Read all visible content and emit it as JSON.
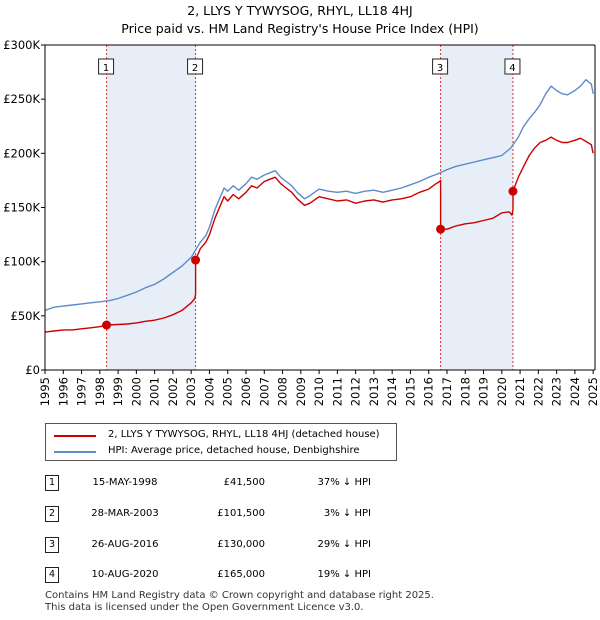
{
  "title": {
    "line1": "2, LLYS Y TYWYSOG, RHYL, LL18 4HJ",
    "line2": "Price paid vs. HM Land Registry's House Price Index (HPI)"
  },
  "colors": {
    "property_line": "#cc0000",
    "hpi_line": "#5b8cc9",
    "shade": "#e8eef8",
    "marker_border": "#cc0000",
    "vline": "#cc0000"
  },
  "legend": {
    "property_label": "2, LLYS Y TYWYSOG, RHYL, LL18 4HJ (detached house)",
    "hpi_label": "HPI: Average price, detached house, Denbighshire"
  },
  "transactions": [
    {
      "num": "1",
      "date": "15-MAY-1998",
      "price": "£41,500",
      "hpi": "37% ↓ HPI"
    },
    {
      "num": "2",
      "date": "28-MAR-2003",
      "price": "£101,500",
      "hpi": "3% ↓ HPI"
    },
    {
      "num": "3",
      "date": "26-AUG-2016",
      "price": "£130,000",
      "hpi": "29% ↓ HPI"
    },
    {
      "num": "4",
      "date": "10-AUG-2020",
      "price": "£165,000",
      "hpi": "19% ↓ HPI"
    }
  ],
  "footer": {
    "line1": "Contains HM Land Registry data © Crown copyright and database right 2025.",
    "line2": "This data is licensed under the Open Government Licence v3.0."
  },
  "chart_data": {
    "type": "line",
    "title": "2, LLYS Y TYWYSOG, RHYL, LL18 4HJ — Price paid vs. HM Land Registry's House Price Index (HPI)",
    "xlabel": "",
    "ylabel": "",
    "xlim": [
      1995,
      2025.1
    ],
    "ylim": [
      0,
      300000
    ],
    "y_ticks": [
      0,
      50000,
      100000,
      150000,
      200000,
      250000,
      300000
    ],
    "y_tick_labels": [
      "£0",
      "£50K",
      "£100K",
      "£150K",
      "£200K",
      "£250K",
      "£300K"
    ],
    "x_ticks": [
      1995,
      1996,
      1997,
      1998,
      1999,
      2000,
      2001,
      2002,
      2003,
      2004,
      2005,
      2006,
      2007,
      2008,
      2009,
      2010,
      2011,
      2012,
      2013,
      2014,
      2015,
      2016,
      2017,
      2018,
      2019,
      2020,
      2021,
      2022,
      2023,
      2024,
      2025
    ],
    "x_tick_labels": [
      "1995",
      "1996",
      "1997",
      "1998",
      "1999",
      "2000",
      "2001",
      "2002",
      "2003",
      "2004",
      "2005",
      "2006",
      "2007",
      "2008",
      "2009",
      "2010",
      "2011",
      "2012",
      "2013",
      "2014",
      "2015",
      "2016",
      "2017",
      "2018",
      "2019",
      "2020",
      "2021",
      "2022",
      "2023",
      "2024",
      "2025"
    ],
    "grid": false,
    "legend_position": "below",
    "sale_events": [
      {
        "num": "1",
        "x": 1998.37,
        "price": 41500
      },
      {
        "num": "2",
        "x": 2003.24,
        "price": 101500
      },
      {
        "num": "3",
        "x": 2016.65,
        "price": 130000
      },
      {
        "num": "4",
        "x": 2020.61,
        "price": 165000
      }
    ],
    "shaded_ranges": [
      [
        1998.37,
        2003.24
      ],
      [
        2016.65,
        2020.61
      ]
    ],
    "series": [
      {
        "name": "2, LLYS Y TYWYSOG, RHYL, LL18 4HJ (detached house)",
        "color": "#cc0000",
        "x": [
          1995.0,
          1995.5,
          1996.0,
          1996.5,
          1997.0,
          1997.5,
          1998.0,
          1998.37,
          1998.37,
          1999.0,
          1999.5,
          2000.0,
          2000.5,
          2001.0,
          2001.5,
          2002.0,
          2002.5,
          2003.0,
          2003.2,
          2003.24,
          2003.24,
          2003.5,
          2003.8,
          2004.0,
          2004.3,
          2004.6,
          2004.8,
          2005.0,
          2005.3,
          2005.6,
          2006.0,
          2006.3,
          2006.6,
          2007.0,
          2007.3,
          2007.6,
          2007.9,
          2008.2,
          2008.5,
          2008.8,
          2009.2,
          2009.5,
          2010.0,
          2010.5,
          2011.0,
          2011.5,
          2012.0,
          2012.5,
          2013.0,
          2013.5,
          2014.0,
          2014.5,
          2015.0,
          2015.5,
          2016.0,
          2016.4,
          2016.6,
          2016.65,
          2016.65,
          2017.0,
          2017.5,
          2018.0,
          2018.5,
          2019.0,
          2019.5,
          2020.0,
          2020.4,
          2020.55,
          2020.61,
          2020.61,
          2020.9,
          2021.2,
          2021.5,
          2021.8,
          2022.1,
          2022.4,
          2022.7,
          2023.0,
          2023.3,
          2023.6,
          2024.0,
          2024.3,
          2024.6,
          2024.9,
          2025.0
        ],
        "values": [
          35000,
          36000,
          37000,
          37000,
          38000,
          39000,
          40000,
          41500,
          41500,
          42000,
          42500,
          43500,
          45000,
          46000,
          48000,
          51000,
          55000,
          62000,
          66000,
          70000,
          101500,
          112000,
          118000,
          125000,
          140000,
          152000,
          160000,
          156000,
          162000,
          158000,
          164000,
          170000,
          168000,
          174000,
          176000,
          178000,
          172000,
          168000,
          164000,
          158000,
          152000,
          154000,
          160000,
          158000,
          156000,
          157000,
          154000,
          156000,
          157000,
          155000,
          157000,
          158000,
          160000,
          164000,
          167000,
          172000,
          174000,
          175000,
          130000,
          130000,
          133000,
          135000,
          136000,
          138000,
          140000,
          145000,
          146000,
          143000,
          148000,
          165000,
          178000,
          188000,
          198000,
          205000,
          210000,
          212000,
          215000,
          212000,
          210000,
          210000,
          212000,
          214000,
          211000,
          208000,
          200000
        ]
      },
      {
        "name": "HPI: Average price, detached house, Denbighshire",
        "color": "#5b8cc9",
        "x": [
          1995.0,
          1995.5,
          1996.0,
          1996.5,
          1997.0,
          1997.5,
          1998.0,
          1998.5,
          1999.0,
          1999.5,
          2000.0,
          2000.5,
          2001.0,
          2001.5,
          2002.0,
          2002.5,
          2003.0,
          2003.5,
          2003.8,
          2004.0,
          2004.3,
          2004.6,
          2004.8,
          2005.0,
          2005.3,
          2005.6,
          2006.0,
          2006.3,
          2006.6,
          2007.0,
          2007.3,
          2007.6,
          2007.9,
          2008.2,
          2008.5,
          2008.8,
          2009.2,
          2009.5,
          2010.0,
          2010.5,
          2011.0,
          2011.5,
          2012.0,
          2012.5,
          2013.0,
          2013.5,
          2014.0,
          2014.5,
          2015.0,
          2015.5,
          2016.0,
          2016.5,
          2017.0,
          2017.5,
          2018.0,
          2018.5,
          2019.0,
          2019.5,
          2020.0,
          2020.5,
          2020.9,
          2021.2,
          2021.5,
          2021.8,
          2022.1,
          2022.4,
          2022.7,
          2023.0,
          2023.3,
          2023.6,
          2024.0,
          2024.3,
          2024.6,
          2024.9,
          2025.0
        ],
        "values": [
          55000,
          58000,
          59000,
          60000,
          61000,
          62000,
          63000,
          64000,
          66000,
          69000,
          72000,
          76000,
          79000,
          84000,
          90000,
          96000,
          104000,
          118000,
          124000,
          132000,
          148000,
          160000,
          168000,
          165000,
          170000,
          166000,
          172000,
          178000,
          176000,
          180000,
          182000,
          184000,
          178000,
          174000,
          170000,
          164000,
          158000,
          161000,
          167000,
          165000,
          164000,
          165000,
          163000,
          165000,
          166000,
          164000,
          166000,
          168000,
          171000,
          174000,
          178000,
          181000,
          185000,
          188000,
          190000,
          192000,
          194000,
          196000,
          198000,
          205000,
          215000,
          225000,
          232000,
          238000,
          245000,
          255000,
          262000,
          258000,
          255000,
          254000,
          258000,
          262000,
          268000,
          264000,
          255000
        ]
      }
    ]
  }
}
